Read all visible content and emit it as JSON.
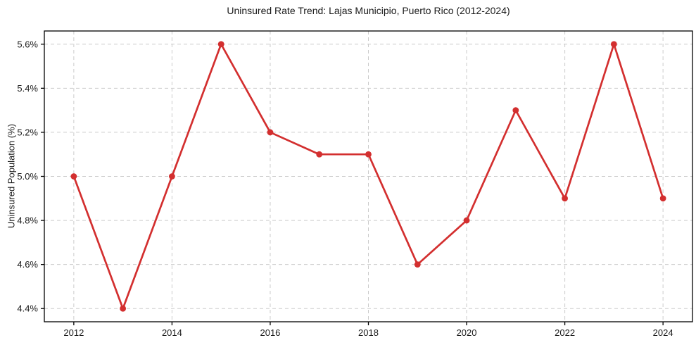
{
  "chart_data": {
    "type": "line",
    "title": "Uninsured Rate Trend: Lajas Municipio, Puerto Rico (2012-2024)",
    "xlabel": "",
    "ylabel": "Uninsured Population (%)",
    "x": [
      2012,
      2013,
      2014,
      2015,
      2016,
      2017,
      2018,
      2019,
      2020,
      2021,
      2022,
      2023,
      2024
    ],
    "values": [
      5.0,
      4.4,
      5.0,
      5.6,
      5.2,
      5.1,
      5.1,
      4.6,
      4.8,
      5.3,
      4.9,
      5.6,
      4.9
    ],
    "xticks": [
      2012,
      2014,
      2016,
      2018,
      2020,
      2022,
      2024
    ],
    "xtick_labels": [
      "2012",
      "2014",
      "2016",
      "2018",
      "2020",
      "2022",
      "2024"
    ],
    "yticks": [
      4.4,
      4.6,
      4.8,
      5.0,
      5.2,
      5.4,
      5.6
    ],
    "ytick_labels": [
      "4.4%",
      "4.6%",
      "4.8%",
      "5.0%",
      "5.2%",
      "5.4%",
      "5.6%"
    ],
    "xlim": [
      2011.4,
      2024.6
    ],
    "ylim": [
      4.34,
      5.66
    ],
    "grid": true,
    "grid_style": "dashed",
    "legend": "none",
    "line_color": "#d32f2f",
    "marker": "circle",
    "marker_color": "#d32f2f",
    "grid_color": "#cbcbcb",
    "axis_color": "#000000",
    "text_color": "#1a1a1a",
    "background": "#ffffff"
  }
}
